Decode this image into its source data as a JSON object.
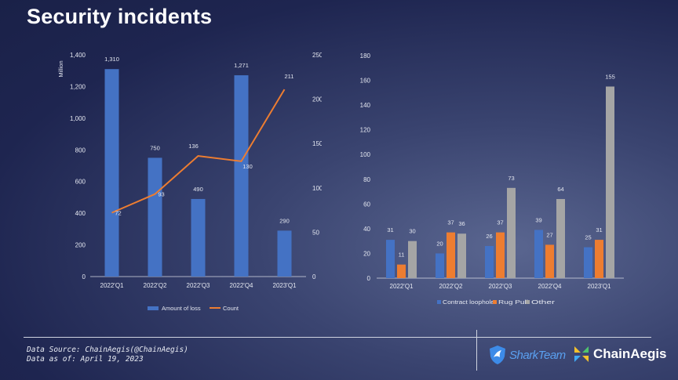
{
  "page": {
    "title": "Security incidents"
  },
  "footer": {
    "source": "Data Source: ChainAegis(@ChainAegis)",
    "date": "Data as of: April 19, 2023",
    "logo1": "SharkTeam",
    "logo2": "ChainAegis"
  },
  "colors": {
    "blue": "#4472c4",
    "orange": "#ed7d31",
    "gray": "#a5a5a5"
  },
  "chart_data": [
    {
      "type": "bar+line",
      "title": "",
      "categories": [
        "2022'Q1",
        "2022'Q2",
        "2022'Q3",
        "2022'Q4",
        "2023'Q1"
      ],
      "ylabel": "Million",
      "y_ticks": [
        "0",
        "200",
        "400",
        "600",
        "800",
        "1,000",
        "1,200",
        "1,400"
      ],
      "ylim": [
        0,
        1400
      ],
      "y2_ticks": [
        "0",
        "50",
        "100",
        "150",
        "200",
        "250"
      ],
      "y2lim": [
        0,
        250
      ],
      "series": [
        {
          "name": "Amount of loss",
          "kind": "bar",
          "axis": "left",
          "color": "#4472c4",
          "values": [
            1310,
            750,
            490,
            1271,
            290
          ],
          "labels": [
            "1,310",
            "750",
            "490",
            "1,271",
            "290"
          ]
        },
        {
          "name": "Count",
          "kind": "line",
          "axis": "right",
          "color": "#ed7d31",
          "values": [
            72,
            93,
            136,
            130,
            211
          ],
          "labels": [
            "72",
            "93",
            "136",
            "130",
            "211"
          ]
        }
      ],
      "legend": "bottom"
    },
    {
      "type": "bar",
      "title": "",
      "categories": [
        "2022'Q1",
        "2022'Q2",
        "2022'Q3",
        "2022'Q4",
        "2023'Q1"
      ],
      "y_ticks": [
        "0",
        "20",
        "40",
        "60",
        "80",
        "100",
        "120",
        "140",
        "160",
        "180"
      ],
      "ylim": [
        0,
        180
      ],
      "series": [
        {
          "name": "Contract loophole",
          "color": "#4472c4",
          "values": [
            31,
            20,
            26,
            39,
            25
          ]
        },
        {
          "name": "Rug Pull",
          "color": "#ed7d31",
          "values": [
            11,
            37,
            37,
            27,
            31
          ]
        },
        {
          "name": "Other",
          "color": "#a5a5a5",
          "values": [
            30,
            36,
            73,
            64,
            155
          ]
        }
      ],
      "legend": "bottom"
    }
  ]
}
